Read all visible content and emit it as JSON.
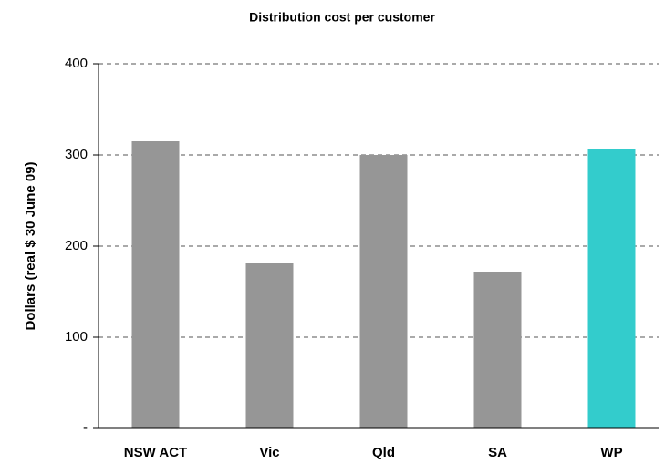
{
  "chart_data": {
    "type": "bar",
    "title": "Distribution cost per customer",
    "y_label": "Dollars (real $ 30 June 09)",
    "categories": [
      "NSW ACT",
      "Vic",
      "Qld",
      "SA",
      "WP"
    ],
    "values": [
      315,
      181,
      300,
      172,
      307
    ],
    "colors": [
      "#969696",
      "#969696",
      "#969696",
      "#969696",
      "#33cccc"
    ],
    "ylim": [
      0,
      400
    ],
    "yticks": [
      {
        "value": 0,
        "label": "-"
      },
      100,
      200,
      300,
      400
    ],
    "grid": true
  }
}
